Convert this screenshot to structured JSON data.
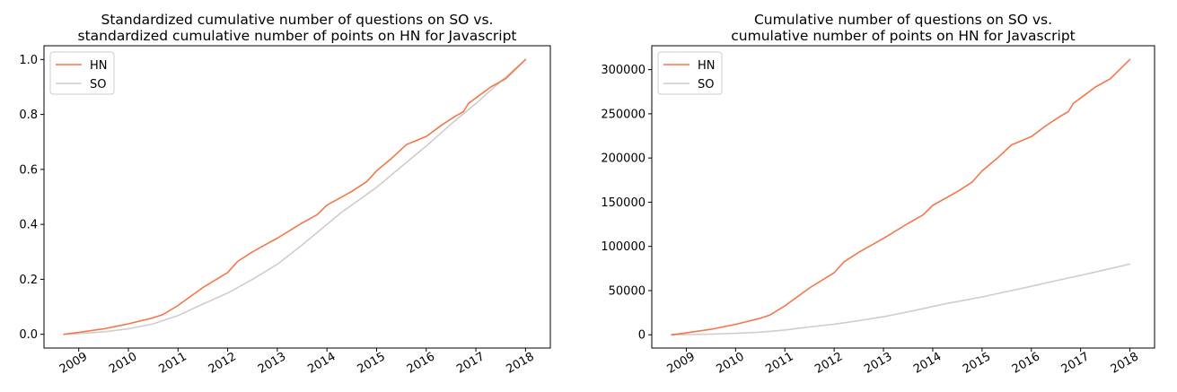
{
  "colors": {
    "hn": "#f4764a",
    "so": "#cdcdcd"
  },
  "chart_data": [
    {
      "type": "line",
      "title_lines": [
        "Standardized cumulative number of questions on SO vs.",
        "standardized cumulative number of points on HN for Javascript"
      ],
      "xlabel": "",
      "ylabel": "",
      "xlim": [
        2008.3,
        2018.5
      ],
      "ylim": [
        -0.05,
        1.05
      ],
      "x_ticks": [
        2009,
        2010,
        2011,
        2012,
        2013,
        2014,
        2015,
        2016,
        2017,
        2018
      ],
      "x_tick_labels": [
        "2009",
        "2010",
        "2011",
        "2012",
        "2013",
        "2014",
        "2015",
        "2016",
        "2017",
        "2018"
      ],
      "y_ticks": [
        0.0,
        0.2,
        0.4,
        0.6,
        0.8,
        1.0
      ],
      "y_tick_labels": [
        "0.0",
        "0.2",
        "0.4",
        "0.6",
        "0.8",
        "1.0"
      ],
      "legend": {
        "position": "upper-left",
        "entries": [
          "HN",
          "SO"
        ]
      },
      "grid": false,
      "series": [
        {
          "name": "HN",
          "color_key": "hn",
          "x": [
            2008.7,
            2009.0,
            2009.5,
            2010.0,
            2010.5,
            2010.7,
            2011.0,
            2011.5,
            2012.0,
            2012.2,
            2012.5,
            2012.8,
            2013.0,
            2013.5,
            2013.8,
            2014.0,
            2014.5,
            2014.8,
            2015.0,
            2015.3,
            2015.6,
            2016.0,
            2016.3,
            2016.6,
            2016.75,
            2016.85,
            2017.0,
            2017.3,
            2017.6,
            2018.0
          ],
          "y": [
            0.0,
            0.007,
            0.02,
            0.038,
            0.06,
            0.072,
            0.105,
            0.17,
            0.225,
            0.265,
            0.3,
            0.33,
            0.35,
            0.405,
            0.435,
            0.47,
            0.52,
            0.555,
            0.595,
            0.64,
            0.69,
            0.72,
            0.76,
            0.795,
            0.81,
            0.84,
            0.86,
            0.9,
            0.93,
            1.0
          ]
        },
        {
          "name": "SO",
          "color_key": "so",
          "x": [
            2008.7,
            2009.0,
            2009.5,
            2010.0,
            2010.5,
            2011.0,
            2011.5,
            2012.0,
            2012.5,
            2013.0,
            2013.5,
            2014.0,
            2014.3,
            2014.5,
            2015.0,
            2015.5,
            2016.0,
            2016.5,
            2017.0,
            2017.5,
            2018.0
          ],
          "y": [
            0.0,
            0.003,
            0.009,
            0.02,
            0.038,
            0.068,
            0.11,
            0.15,
            0.2,
            0.255,
            0.325,
            0.4,
            0.445,
            0.47,
            0.535,
            0.61,
            0.685,
            0.765,
            0.84,
            0.92,
            1.0
          ]
        }
      ]
    },
    {
      "type": "line",
      "title_lines": [
        "Cumulative number of questions on SO vs.",
        "cumulative number of points on HN for Javascript"
      ],
      "xlabel": "",
      "ylabel": "",
      "xlim": [
        2008.3,
        2018.5
      ],
      "ylim": [
        -15000,
        327000
      ],
      "x_ticks": [
        2009,
        2010,
        2011,
        2012,
        2013,
        2014,
        2015,
        2016,
        2017,
        2018
      ],
      "x_tick_labels": [
        "2009",
        "2010",
        "2011",
        "2012",
        "2013",
        "2014",
        "2015",
        "2016",
        "2017",
        "2018"
      ],
      "y_ticks": [
        0,
        50000,
        100000,
        150000,
        200000,
        250000,
        300000
      ],
      "y_tick_labels": [
        "0",
        "50000",
        "100000",
        "150000",
        "200000",
        "250000",
        "300000"
      ],
      "legend": {
        "position": "upper-left",
        "entries": [
          "HN",
          "SO"
        ]
      },
      "grid": false,
      "series": [
        {
          "name": "HN",
          "color_key": "hn",
          "x": [
            2008.7,
            2009.0,
            2009.5,
            2010.0,
            2010.5,
            2010.7,
            2011.0,
            2011.5,
            2012.0,
            2012.2,
            2012.5,
            2012.8,
            2013.0,
            2013.5,
            2013.8,
            2014.0,
            2014.5,
            2014.8,
            2015.0,
            2015.3,
            2015.6,
            2016.0,
            2016.3,
            2016.6,
            2016.75,
            2016.85,
            2017.0,
            2017.3,
            2017.6,
            2018.0
          ],
          "y": [
            0,
            2200,
            6200,
            11800,
            18700,
            22400,
            32700,
            53000,
            70100,
            82500,
            93400,
            102800,
            109000,
            126100,
            135500,
            146400,
            162000,
            172800,
            185300,
            199300,
            214900,
            224200,
            236700,
            247600,
            252300,
            261600,
            267800,
            280300,
            289600,
            311500
          ]
        },
        {
          "name": "SO",
          "color_key": "so",
          "x": [
            2008.7,
            2009.0,
            2009.5,
            2010.0,
            2010.5,
            2011.0,
            2011.5,
            2012.0,
            2012.5,
            2013.0,
            2013.5,
            2014.0,
            2014.3,
            2014.5,
            2015.0,
            2015.5,
            2016.0,
            2016.5,
            2017.0,
            2017.5,
            2018.0
          ],
          "y": [
            0,
            240,
            720,
            1600,
            3000,
            5400,
            8800,
            12000,
            16000,
            20400,
            26000,
            32000,
            35600,
            37600,
            42800,
            48800,
            54800,
            61200,
            67200,
            73600,
            80000
          ]
        }
      ]
    }
  ]
}
